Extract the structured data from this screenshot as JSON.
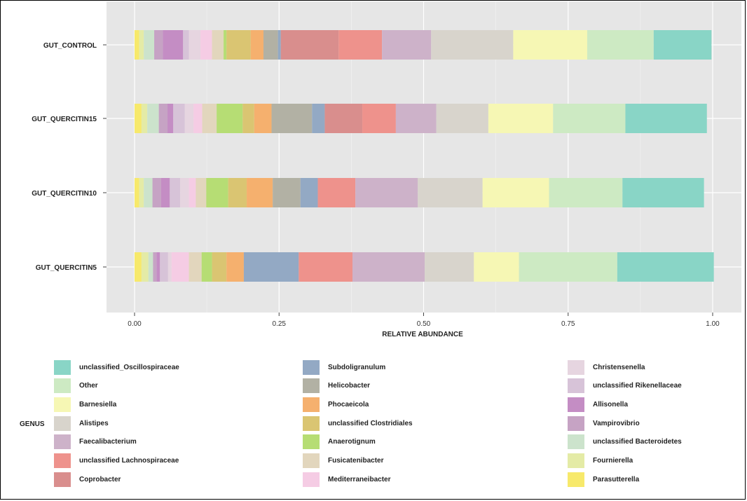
{
  "chart_data": {
    "type": "bar",
    "orientation": "horizontal",
    "stacked": true,
    "xlabel": "RELATIVE ABUNDANCE",
    "xlim": [
      0,
      1
    ],
    "xticks": [
      "0.00",
      "0.25",
      "0.50",
      "0.75",
      "1.00"
    ],
    "xtick_values": [
      0,
      0.25,
      0.5,
      0.75,
      1.0
    ],
    "categories": [
      "GUT_CONTROL",
      "GUT_QUERCITIN15",
      "GUT_QUERCITIN10",
      "GUT_QUERCITIN5"
    ],
    "grid": true,
    "legend_title": "GENUS",
    "legend_position": "bottom",
    "series": [
      {
        "name": "Parasutterella",
        "color": "#f7e96b",
        "values": [
          0.008,
          0.012,
          0.008,
          0.012
        ]
      },
      {
        "name": "Fournierella",
        "color": "#e4eba6",
        "values": [
          0.008,
          0.01,
          0.008,
          0.012
        ]
      },
      {
        "name": "unclassified Bacteroidetes",
        "color": "#cce3cc",
        "values": [
          0.018,
          0.02,
          0.015,
          0.008
        ]
      },
      {
        "name": "Vampirovibrio",
        "color": "#c6a3c4",
        "values": [
          0.015,
          0.015,
          0.015,
          0.006
        ]
      },
      {
        "name": "Allisonella",
        "color": "#c48dc4",
        "values": [
          0.035,
          0.01,
          0.015,
          0.006
        ]
      },
      {
        "name": "unclassified Rikenellaceae",
        "color": "#d7c3d8",
        "values": [
          0.01,
          0.02,
          0.018,
          0.014
        ]
      },
      {
        "name": "Christensenella",
        "color": "#e6d5e0",
        "values": [
          0.02,
          0.015,
          0.015,
          0.006
        ]
      },
      {
        "name": "Mediterraneibacter",
        "color": "#f5cce4",
        "values": [
          0.02,
          0.015,
          0.012,
          0.03
        ]
      },
      {
        "name": "Fusicatenibacter",
        "color": "#e2d6bd",
        "values": [
          0.02,
          0.025,
          0.018,
          0.022
        ]
      },
      {
        "name": "Anaerotignum",
        "color": "#b6dd74",
        "values": [
          0.005,
          0.045,
          0.038,
          0.018
        ]
      },
      {
        "name": "unclassified Clostridiales",
        "color": "#dac572",
        "values": [
          0.042,
          0.02,
          0.032,
          0.025
        ]
      },
      {
        "name": "Phocaeicola",
        "color": "#f5b06e",
        "values": [
          0.022,
          0.03,
          0.045,
          0.03
        ]
      },
      {
        "name": "Helicobacter",
        "color": "#b2b1a4",
        "values": [
          0.025,
          0.07,
          0.048,
          0.0
        ]
      },
      {
        "name": "Subdoligranulum",
        "color": "#93a9c4",
        "values": [
          0.005,
          0.022,
          0.03,
          0.095
        ]
      },
      {
        "name": "Coprobacter",
        "color": "#d98e8d",
        "values": [
          0.1,
          0.065,
          0.0,
          0.0
        ]
      },
      {
        "name": "unclassified Lachnospiraceae",
        "color": "#ee928c",
        "values": [
          0.075,
          0.058,
          0.065,
          0.093
        ]
      },
      {
        "name": "Faecalibacterium",
        "color": "#cdb2c9",
        "values": [
          0.085,
          0.07,
          0.108,
          0.125
        ]
      },
      {
        "name": "Alistipes",
        "color": "#d8d4cc",
        "values": [
          0.142,
          0.09,
          0.112,
          0.085
        ]
      },
      {
        "name": "Barnesiella",
        "color": "#f6f7b4",
        "values": [
          0.128,
          0.112,
          0.115,
          0.078
        ]
      },
      {
        "name": "Other",
        "color": "#cdeac3",
        "values": [
          0.115,
          0.125,
          0.127,
          0.17
        ]
      },
      {
        "name": "unclassified_Oscillospiraceae",
        "color": "#89d5c6",
        "values": [
          0.1,
          0.141,
          0.141,
          0.167
        ]
      }
    ],
    "legend_columns": [
      [
        "unclassified_Oscillospiraceae",
        "Other",
        "Barnesiella",
        "Alistipes",
        "Faecalibacterium",
        "unclassified Lachnospiraceae",
        "Coprobacter"
      ],
      [
        "Subdoligranulum",
        "Helicobacter",
        "Phocaeicola",
        "unclassified Clostridiales",
        "Anaerotignum",
        "Fusicatenibacter",
        "Mediterraneibacter"
      ],
      [
        "Christensenella",
        "unclassified Rikenellaceae",
        "Allisonella",
        "Vampirovibrio",
        "unclassified Bacteroidetes",
        "Fournierella",
        "Parasutterella"
      ]
    ]
  }
}
